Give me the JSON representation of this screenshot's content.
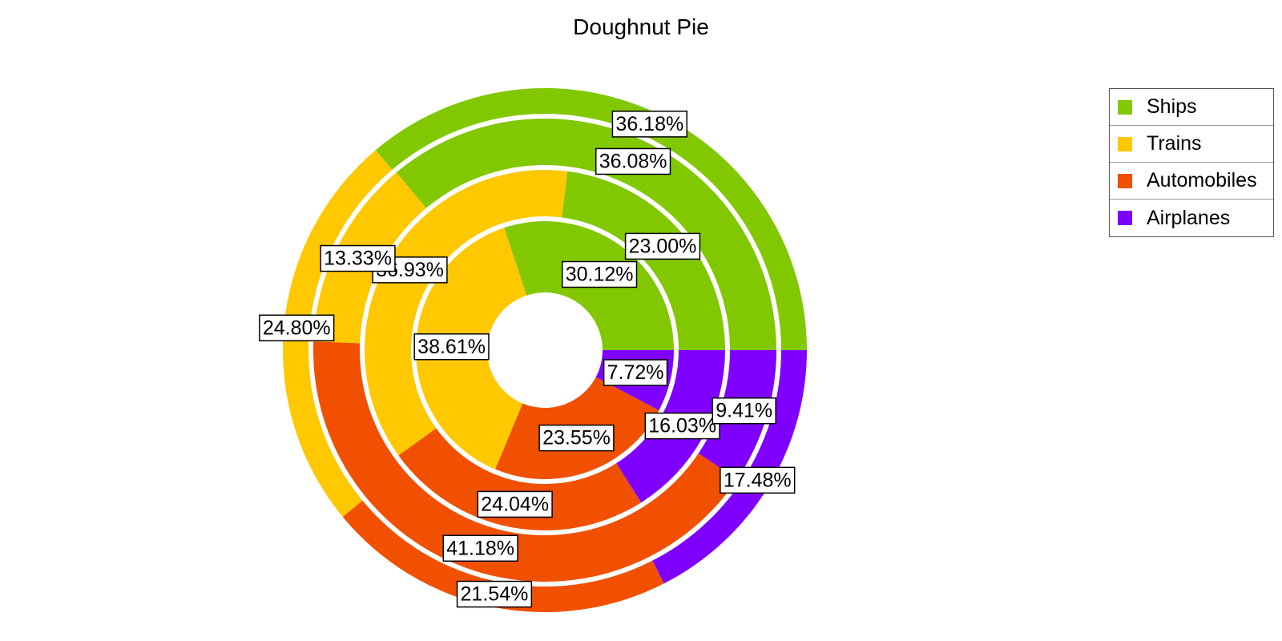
{
  "chart_data": {
    "type": "doughnut",
    "title": "Doughnut Pie",
    "series_labels": [
      "Ships",
      "Trains",
      "Automobiles",
      "Airplanes"
    ],
    "colors": {
      "Ships": "#82c800",
      "Trains": "#ffc800",
      "Automobiles": "#f05000",
      "Airplanes": "#8000ff"
    },
    "rings": [
      {
        "values": [
          30.12,
          38.61,
          23.55,
          7.72
        ],
        "labels": [
          "30.12%",
          "38.61%",
          "23.55%",
          "7.72%"
        ]
      },
      {
        "values": [
          23.0,
          36.93,
          24.04,
          16.03
        ],
        "labels": [
          "23.00%",
          "36.93%",
          "24.04%",
          "16.03%"
        ]
      },
      {
        "values": [
          36.08,
          13.33,
          41.18,
          9.41
        ],
        "labels": [
          "36.08%",
          "13.33%",
          "41.18%",
          "9.41%"
        ]
      },
      {
        "values": [
          36.18,
          24.8,
          21.54,
          17.48
        ],
        "labels": [
          "36.18%",
          "24.80%",
          "21.54%",
          "17.48%"
        ]
      }
    ],
    "legend_position": "top-right"
  }
}
